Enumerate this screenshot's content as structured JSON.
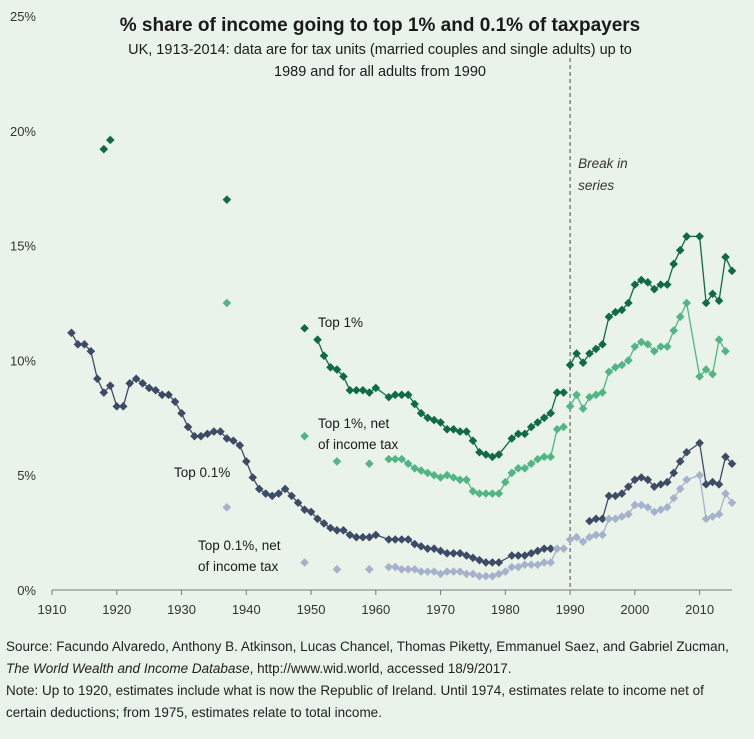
{
  "chart_data": {
    "type": "scatter",
    "title": "% share of income going to top 1% and 0.1% of taxpayers",
    "subtitle_line1": "UK, 1913-2014: data are for tax units (married couples and single adults) up to",
    "subtitle_line2": "1989 and for all adults from 1990",
    "xlim": [
      1910,
      2015
    ],
    "ylim": [
      0,
      25
    ],
    "x_ticks": [
      "1910",
      "1920",
      "1930",
      "1940",
      "1950",
      "1960",
      "1970",
      "1980",
      "1990",
      "2000",
      "2010"
    ],
    "y_ticks": [
      "0%",
      "5%",
      "10%",
      "15%",
      "20%",
      "25%"
    ],
    "break_year": 1990,
    "break_label_line1": "Break in",
    "break_label_line2": "series",
    "colors": {
      "top1": "#0f6b45",
      "top1_net": "#52b585",
      "top01": "#3e4b66",
      "top01_net": "#a6b2cc",
      "axis": "#7a7a7a",
      "break": "#666666"
    },
    "series": [
      {
        "name": "Top 1%",
        "label_lines": [
          "Top 1%"
        ],
        "color_key": "top1",
        "points": [
          [
            1918,
            19.2
          ],
          [
            1919,
            19.6
          ],
          [
            1937,
            17.0
          ],
          [
            1949,
            11.4
          ],
          [
            1951,
            10.9
          ],
          [
            1952,
            10.2
          ],
          [
            1953,
            9.7
          ],
          [
            1954,
            9.6
          ],
          [
            1955,
            9.3
          ],
          [
            1956,
            8.7
          ],
          [
            1957,
            8.7
          ],
          [
            1958,
            8.7
          ],
          [
            1959,
            8.6
          ],
          [
            1960,
            8.8
          ],
          [
            1962,
            8.4
          ],
          [
            1963,
            8.5
          ],
          [
            1964,
            8.5
          ],
          [
            1965,
            8.5
          ],
          [
            1966,
            8.1
          ],
          [
            1967,
            7.7
          ],
          [
            1968,
            7.5
          ],
          [
            1969,
            7.4
          ],
          [
            1970,
            7.3
          ],
          [
            1971,
            7.0
          ],
          [
            1972,
            7.0
          ],
          [
            1973,
            6.9
          ],
          [
            1974,
            6.9
          ],
          [
            1975,
            6.5
          ],
          [
            1976,
            6.0
          ],
          [
            1977,
            5.9
          ],
          [
            1978,
            5.8
          ],
          [
            1979,
            5.9
          ],
          [
            1981,
            6.6
          ],
          [
            1982,
            6.8
          ],
          [
            1983,
            6.8
          ],
          [
            1984,
            7.1
          ],
          [
            1985,
            7.3
          ],
          [
            1986,
            7.5
          ],
          [
            1987,
            7.7
          ],
          [
            1988,
            8.6
          ],
          [
            1989,
            8.6
          ],
          [
            1990,
            9.8
          ],
          [
            1991,
            10.3
          ],
          [
            1992,
            9.9
          ],
          [
            1993,
            10.3
          ],
          [
            1994,
            10.5
          ],
          [
            1995,
            10.7
          ],
          [
            1996,
            11.9
          ],
          [
            1997,
            12.1
          ],
          [
            1998,
            12.2
          ],
          [
            1999,
            12.5
          ],
          [
            2000,
            13.3
          ],
          [
            2001,
            13.5
          ],
          [
            2002,
            13.4
          ],
          [
            2003,
            13.1
          ],
          [
            2004,
            13.3
          ],
          [
            2005,
            13.3
          ],
          [
            2006,
            14.2
          ],
          [
            2007,
            14.8
          ],
          [
            2008,
            15.4
          ],
          [
            2010,
            15.4
          ],
          [
            2011,
            12.5
          ],
          [
            2012,
            12.9
          ],
          [
            2013,
            12.6
          ],
          [
            2014,
            14.5
          ],
          [
            2015,
            13.9
          ]
        ],
        "connect_from": 1951
      },
      {
        "name": "Top 1%, net of income tax",
        "label_lines": [
          "Top 1%, net",
          "of income tax"
        ],
        "color_key": "top1_net",
        "points": [
          [
            1937,
            12.5
          ],
          [
            1949,
            6.7
          ],
          [
            1954,
            5.6
          ],
          [
            1959,
            5.5
          ],
          [
            1962,
            5.7
          ],
          [
            1963,
            5.7
          ],
          [
            1964,
            5.7
          ],
          [
            1965,
            5.5
          ],
          [
            1966,
            5.3
          ],
          [
            1967,
            5.2
          ],
          [
            1968,
            5.1
          ],
          [
            1969,
            5.0
          ],
          [
            1970,
            4.9
          ],
          [
            1971,
            5.0
          ],
          [
            1972,
            4.9
          ],
          [
            1973,
            4.8
          ],
          [
            1974,
            4.8
          ],
          [
            1975,
            4.3
          ],
          [
            1976,
            4.2
          ],
          [
            1977,
            4.2
          ],
          [
            1978,
            4.2
          ],
          [
            1979,
            4.2
          ],
          [
            1980,
            4.7
          ],
          [
            1981,
            5.1
          ],
          [
            1982,
            5.3
          ],
          [
            1983,
            5.3
          ],
          [
            1984,
            5.5
          ],
          [
            1985,
            5.7
          ],
          [
            1986,
            5.8
          ],
          [
            1987,
            5.8
          ],
          [
            1988,
            7.0
          ],
          [
            1989,
            7.1
          ],
          [
            1990,
            8.0
          ],
          [
            1991,
            8.5
          ],
          [
            1992,
            7.9
          ],
          [
            1993,
            8.4
          ],
          [
            1994,
            8.5
          ],
          [
            1995,
            8.6
          ],
          [
            1996,
            9.5
          ],
          [
            1997,
            9.7
          ],
          [
            1998,
            9.8
          ],
          [
            1999,
            10.0
          ],
          [
            2000,
            10.6
          ],
          [
            2001,
            10.8
          ],
          [
            2002,
            10.7
          ],
          [
            2003,
            10.4
          ],
          [
            2004,
            10.6
          ],
          [
            2005,
            10.6
          ],
          [
            2006,
            11.3
          ],
          [
            2007,
            11.9
          ],
          [
            2008,
            12.5
          ],
          [
            2010,
            9.3
          ],
          [
            2011,
            9.6
          ],
          [
            2012,
            9.4
          ],
          [
            2013,
            10.9
          ],
          [
            2014,
            10.4
          ]
        ],
        "connect_from": 1962
      },
      {
        "name": "Top 0.1%",
        "label_lines": [
          "Top 0.1%"
        ],
        "color_key": "top01",
        "points": [
          [
            1913,
            11.2
          ],
          [
            1914,
            10.7
          ],
          [
            1915,
            10.7
          ],
          [
            1916,
            10.4
          ],
          [
            1917,
            9.2
          ],
          [
            1918,
            8.6
          ],
          [
            1919,
            8.9
          ],
          [
            1920,
            8.0
          ],
          [
            1921,
            8.0
          ],
          [
            1922,
            9.0
          ],
          [
            1923,
            9.2
          ],
          [
            1924,
            9.0
          ],
          [
            1925,
            8.8
          ],
          [
            1926,
            8.7
          ],
          [
            1927,
            8.5
          ],
          [
            1928,
            8.5
          ],
          [
            1929,
            8.2
          ],
          [
            1930,
            7.7
          ],
          [
            1931,
            7.1
          ],
          [
            1932,
            6.7
          ],
          [
            1933,
            6.7
          ],
          [
            1934,
            6.8
          ],
          [
            1935,
            6.9
          ],
          [
            1936,
            6.9
          ],
          [
            1937,
            6.6
          ],
          [
            1938,
            6.5
          ],
          [
            1939,
            6.3
          ],
          [
            1940,
            5.6
          ],
          [
            1941,
            4.9
          ],
          [
            1942,
            4.4
          ],
          [
            1943,
            4.2
          ],
          [
            1944,
            4.1
          ],
          [
            1945,
            4.2
          ],
          [
            1946,
            4.4
          ],
          [
            1947,
            4.1
          ],
          [
            1948,
            3.8
          ],
          [
            1949,
            3.5
          ],
          [
            1950,
            3.4
          ],
          [
            1951,
            3.1
          ],
          [
            1952,
            2.9
          ],
          [
            1953,
            2.7
          ],
          [
            1954,
            2.6
          ],
          [
            1955,
            2.6
          ],
          [
            1956,
            2.4
          ],
          [
            1957,
            2.3
          ],
          [
            1958,
            2.3
          ],
          [
            1959,
            2.3
          ],
          [
            1960,
            2.4
          ],
          [
            1962,
            2.2
          ],
          [
            1963,
            2.2
          ],
          [
            1964,
            2.2
          ],
          [
            1965,
            2.2
          ],
          [
            1966,
            2.0
          ],
          [
            1967,
            1.9
          ],
          [
            1968,
            1.8
          ],
          [
            1969,
            1.8
          ],
          [
            1970,
            1.7
          ],
          [
            1971,
            1.6
          ],
          [
            1972,
            1.6
          ],
          [
            1973,
            1.6
          ],
          [
            1974,
            1.5
          ],
          [
            1975,
            1.4
          ],
          [
            1976,
            1.3
          ],
          [
            1977,
            1.2
          ],
          [
            1978,
            1.2
          ],
          [
            1979,
            1.2
          ],
          [
            1981,
            1.5
          ],
          [
            1982,
            1.5
          ],
          [
            1983,
            1.5
          ],
          [
            1984,
            1.6
          ],
          [
            1985,
            1.7
          ],
          [
            1986,
            1.8
          ],
          [
            1987,
            1.8
          ],
          [
            1993,
            3.0
          ],
          [
            1994,
            3.1
          ],
          [
            1995,
            3.1
          ],
          [
            1996,
            4.1
          ],
          [
            1997,
            4.1
          ],
          [
            1998,
            4.2
          ],
          [
            1999,
            4.5
          ],
          [
            2000,
            4.8
          ],
          [
            2001,
            4.9
          ],
          [
            2002,
            4.8
          ],
          [
            2003,
            4.5
          ],
          [
            2004,
            4.6
          ],
          [
            2005,
            4.7
          ],
          [
            2006,
            5.1
          ],
          [
            2007,
            5.6
          ],
          [
            2008,
            6.0
          ],
          [
            2010,
            6.4
          ],
          [
            2011,
            4.6
          ],
          [
            2012,
            4.7
          ],
          [
            2013,
            4.6
          ],
          [
            2014,
            5.8
          ],
          [
            2015,
            5.5
          ]
        ],
        "connect_from": 1913
      },
      {
        "name": "Top 0.1%, net of income tax",
        "label_lines": [
          "Top 0.1%, net",
          "of income tax"
        ],
        "color_key": "top01_net",
        "points": [
          [
            1937,
            3.6
          ],
          [
            1949,
            1.2
          ],
          [
            1954,
            0.9
          ],
          [
            1959,
            0.9
          ],
          [
            1962,
            1.0
          ],
          [
            1963,
            1.0
          ],
          [
            1964,
            0.9
          ],
          [
            1965,
            0.9
          ],
          [
            1966,
            0.9
          ],
          [
            1967,
            0.8
          ],
          [
            1968,
            0.8
          ],
          [
            1969,
            0.8
          ],
          [
            1970,
            0.7
          ],
          [
            1971,
            0.8
          ],
          [
            1972,
            0.8
          ],
          [
            1973,
            0.8
          ],
          [
            1974,
            0.7
          ],
          [
            1975,
            0.7
          ],
          [
            1976,
            0.6
          ],
          [
            1977,
            0.6
          ],
          [
            1978,
            0.6
          ],
          [
            1979,
            0.7
          ],
          [
            1980,
            0.8
          ],
          [
            1981,
            1.0
          ],
          [
            1982,
            1.0
          ],
          [
            1983,
            1.1
          ],
          [
            1984,
            1.1
          ],
          [
            1985,
            1.1
          ],
          [
            1986,
            1.2
          ],
          [
            1987,
            1.2
          ],
          [
            1988,
            1.8
          ],
          [
            1989,
            1.8
          ],
          [
            1990,
            2.2
          ],
          [
            1991,
            2.3
          ],
          [
            1992,
            2.1
          ],
          [
            1993,
            2.3
          ],
          [
            1994,
            2.4
          ],
          [
            1995,
            2.4
          ],
          [
            1996,
            3.1
          ],
          [
            1997,
            3.1
          ],
          [
            1998,
            3.2
          ],
          [
            1999,
            3.3
          ],
          [
            2000,
            3.7
          ],
          [
            2001,
            3.7
          ],
          [
            2002,
            3.6
          ],
          [
            2003,
            3.4
          ],
          [
            2004,
            3.5
          ],
          [
            2005,
            3.6
          ],
          [
            2006,
            4.0
          ],
          [
            2007,
            4.4
          ],
          [
            2008,
            4.8
          ],
          [
            2010,
            5.0
          ],
          [
            2011,
            3.1
          ],
          [
            2012,
            3.2
          ],
          [
            2013,
            3.3
          ],
          [
            2014,
            4.2
          ],
          [
            2015,
            3.8
          ]
        ],
        "connect_from": 1962
      }
    ]
  },
  "footer": {
    "source_prefix": "Source: Facundo Alvaredo, Anthony B. Atkinson, Lucas Chancel, Thomas Piketty, Emmanuel Saez, and Gabriel Zucman, ",
    "source_title": "The World Wealth and Income Database",
    "source_suffix": ", http://www.wid.world, accessed 18/9/2017.",
    "note": "Note: Up to 1920, estimates include what is now the Republic of Ireland. Until 1974, estimates relate to income net of certain deductions; from 1975, estimates relate to total income."
  }
}
